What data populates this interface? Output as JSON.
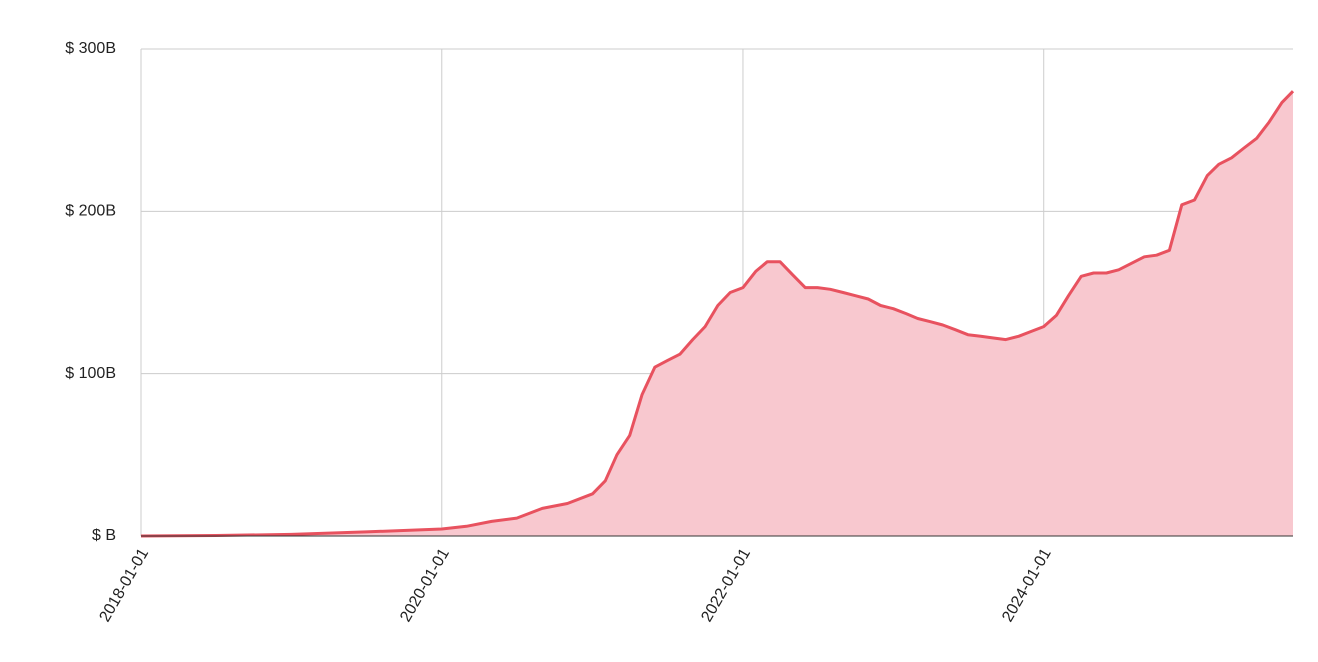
{
  "chart_data": {
    "type": "area",
    "x": [
      "2018-01-01",
      "2018-07-01",
      "2019-01-01",
      "2019-07-01",
      "2020-01-01",
      "2020-03-01",
      "2020-05-01",
      "2020-07-01",
      "2020-09-01",
      "2020-11-01",
      "2021-01-01",
      "2021-02-01",
      "2021-03-01",
      "2021-04-01",
      "2021-05-01",
      "2021-06-01",
      "2021-07-01",
      "2021-08-01",
      "2021-09-01",
      "2021-10-01",
      "2021-11-01",
      "2021-12-01",
      "2022-01-01",
      "2022-02-01",
      "2022-03-01",
      "2022-04-01",
      "2022-05-01",
      "2022-06-01",
      "2022-07-01",
      "2022-08-01",
      "2022-09-01",
      "2022-10-01",
      "2022-11-01",
      "2022-12-01",
      "2023-01-01",
      "2023-02-01",
      "2023-03-01",
      "2023-04-01",
      "2023-05-01",
      "2023-06-01",
      "2023-07-01",
      "2023-08-01",
      "2023-09-01",
      "2023-10-01",
      "2023-11-01",
      "2023-12-01",
      "2024-01-01",
      "2024-02-01",
      "2024-03-01",
      "2024-04-01",
      "2024-05-01",
      "2024-06-01",
      "2024-07-01",
      "2024-08-01",
      "2024-09-01",
      "2024-10-01",
      "2024-11-01",
      "2024-12-01",
      "2025-01-01",
      "2025-02-01",
      "2025-03-01",
      "2025-04-01",
      "2025-05-01",
      "2025-06-01",
      "2025-07-01",
      "2025-08-01",
      "2025-08-28"
    ],
    "values": [
      0,
      0.3,
      1,
      2.5,
      4.3,
      6,
      9,
      11,
      17,
      20,
      26,
      34,
      50,
      62,
      87,
      104,
      108,
      112,
      121,
      129,
      142,
      150,
      153,
      163,
      169,
      169,
      161,
      153,
      153,
      152,
      150,
      148,
      146,
      142,
      140,
      137,
      134,
      132,
      130,
      127,
      124,
      123,
      122,
      121,
      123,
      126,
      129,
      136,
      148,
      160,
      162,
      162,
      164,
      168,
      172,
      173,
      176,
      204,
      207,
      222,
      229,
      233,
      239,
      245,
      255,
      267,
      274
    ],
    "color": "#e8525f",
    "fill_color": "#f8c8cf",
    "xlim": [
      "2018-01-01",
      "2025-08-28"
    ],
    "xticks": [
      "2018-01-01",
      "2020-01-01",
      "2022-01-01",
      "2024-01-01"
    ],
    "ylim": [
      0,
      300
    ],
    "yticks": [
      {
        "value": 0,
        "label": "$ B"
      },
      {
        "value": 100,
        "label": "$ 100B"
      },
      {
        "value": 200,
        "label": "$ 200B"
      },
      {
        "value": 300,
        "label": "$ 300B"
      }
    ],
    "grid": true
  }
}
